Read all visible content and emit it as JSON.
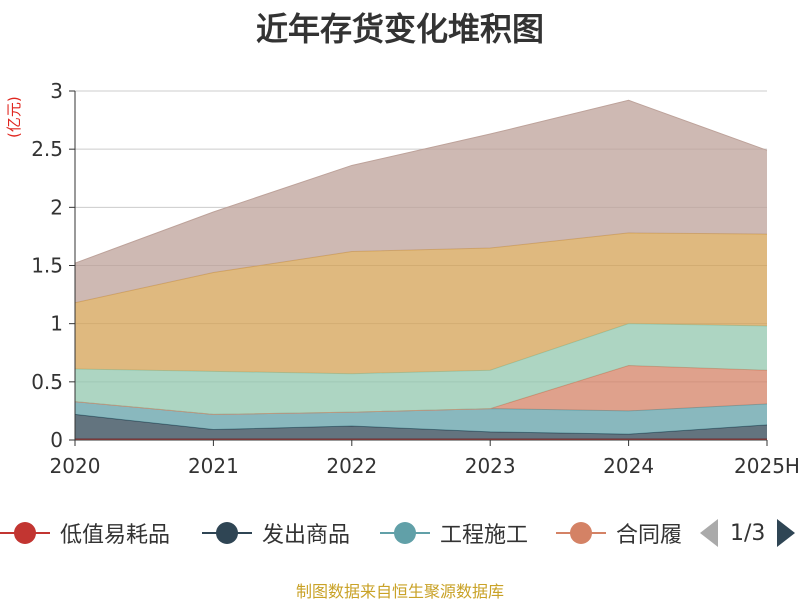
{
  "chart_data": {
    "type": "area",
    "stacked": true,
    "title": "近年存货变化堆积图",
    "ylabel": "(亿元)",
    "categories": [
      "2020",
      "2021",
      "2022",
      "2023",
      "2024",
      "2025H"
    ],
    "ylim": [
      0,
      3
    ],
    "yticks": [
      "0",
      "0.5",
      "1",
      "1.5",
      "2",
      "2.5",
      "3"
    ],
    "grid": true,
    "series": [
      {
        "name": "低值易耗品",
        "color": "#c23531",
        "values": [
          0.01,
          0.01,
          0.01,
          0.01,
          0.01,
          0.01
        ]
      },
      {
        "name": "发出商品",
        "color": "#2f4554",
        "values": [
          0.21,
          0.08,
          0.11,
          0.06,
          0.04,
          0.12
        ]
      },
      {
        "name": "工程施工",
        "color": "#61a0a8",
        "values": [
          0.11,
          0.13,
          0.12,
          0.2,
          0.2,
          0.18
        ]
      },
      {
        "name": "合同履约成本",
        "color": "#d48265",
        "values": [
          0.0,
          0.0,
          0.0,
          0.0,
          0.39,
          0.29
        ]
      },
      {
        "name": "",
        "color": "#91c7ae",
        "values": [
          0.28,
          0.37,
          0.33,
          0.33,
          0.36,
          0.38
        ]
      },
      {
        "name": "",
        "color": "#d4a254",
        "values": [
          0.57,
          0.85,
          1.05,
          1.05,
          0.78,
          0.79
        ]
      },
      {
        "name": "",
        "color": "#bda29a",
        "values": [
          0.34,
          0.52,
          0.74,
          0.98,
          1.14,
          0.72
        ]
      }
    ],
    "legend_position": "bottom"
  },
  "legend": {
    "items": [
      {
        "label": "低值易耗品",
        "color": "#c23531"
      },
      {
        "label": "发出商品",
        "color": "#2f4554"
      },
      {
        "label": "工程施工",
        "color": "#61a0a8"
      },
      {
        "label": "合同履",
        "color": "#d48265"
      }
    ],
    "page": "1/3"
  },
  "source": "制图数据来自恒生聚源数据库"
}
